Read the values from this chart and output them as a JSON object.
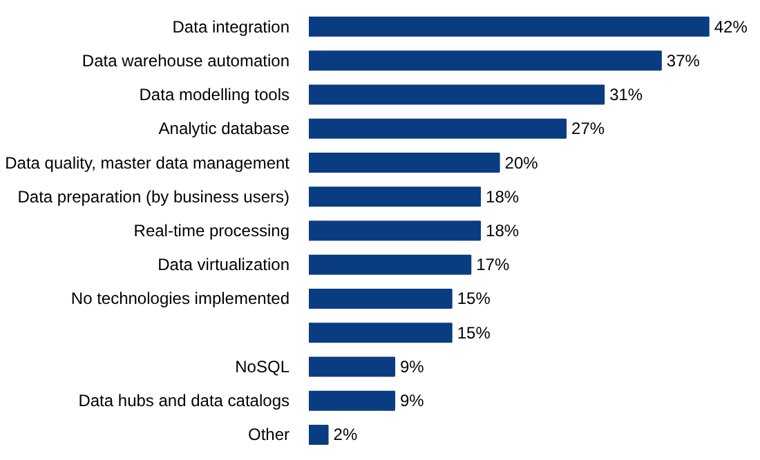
{
  "chart_data": {
    "type": "bar",
    "orientation": "horizontal",
    "categories": [
      "Data integration",
      "Data warehouse automation",
      "Data modelling tools",
      "Analytic database",
      "Data quality, master data management",
      "Data preparation (by business users)",
      "Real-time processing",
      "Data virtualization",
      "No technologies implemented",
      null,
      "NoSQL",
      "Data hubs and data catalogs",
      "Other"
    ],
    "values": [
      42,
      37,
      31,
      27,
      20,
      18,
      18,
      17,
      15,
      15,
      9,
      9,
      2
    ],
    "value_labels": [
      "42%",
      "37%",
      "31%",
      "27%",
      "20%",
      "18%",
      "18%",
      "17%",
      "15%",
      "15%",
      "9%",
      "9%",
      "2%"
    ],
    "color": "#0a3c82"
  }
}
